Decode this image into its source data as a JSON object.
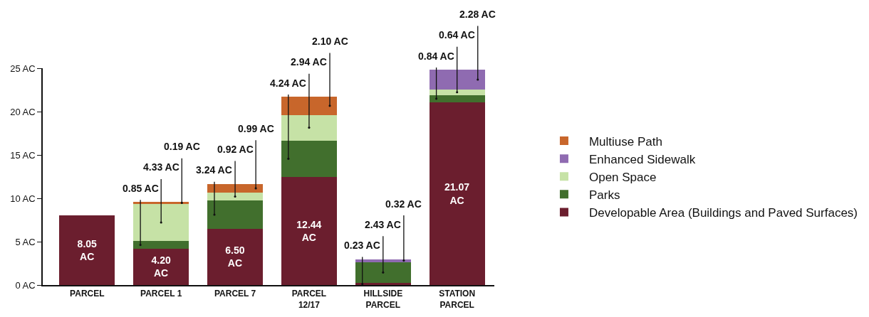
{
  "chart_data": {
    "type": "bar",
    "stacked": true,
    "categories": [
      "PARCEL",
      "PARCEL 1",
      "PARCEL 7",
      "PARCEL 12/17",
      "HILLSIDE PARCEL",
      "STATION PARCEL"
    ],
    "series": [
      {
        "name": "Developable Area (Buildings and Paved Surfaces)",
        "color": "#6b1e2e",
        "values": [
          8.05,
          4.2,
          6.5,
          12.44,
          0.23,
          21.07
        ],
        "value_labels": [
          "8.05 AC",
          "4.20 AC",
          "6.50 AC",
          "12.44 AC",
          "0.23 AC",
          "21.07 AC"
        ]
      },
      {
        "name": "Parks",
        "color": "#416f2d",
        "values": [
          null,
          0.85,
          3.24,
          4.24,
          2.43,
          0.84
        ],
        "value_labels": [
          null,
          "0.85 AC",
          "3.24 AC",
          "4.24 AC",
          "2.43 AC",
          "0.84 AC"
        ]
      },
      {
        "name": "Open Space",
        "color": "#c6e2a6",
        "values": [
          null,
          4.33,
          0.92,
          2.94,
          null,
          0.64
        ],
        "value_labels": [
          null,
          "4.33 AC",
          "0.92 AC",
          "2.94 AC",
          null,
          "0.64 AC"
        ]
      },
      {
        "name": "Enhanced Sidewalk",
        "color": "#8f6bb1",
        "values": [
          null,
          null,
          null,
          null,
          0.32,
          2.28
        ],
        "value_labels": [
          null,
          null,
          null,
          null,
          "0.32 AC",
          "2.28 AC"
        ]
      },
      {
        "name": "Multiuse Path",
        "color": "#c8662b",
        "values": [
          null,
          0.19,
          0.99,
          2.1,
          null,
          null
        ],
        "value_labels": [
          null,
          "0.19 AC",
          "0.99 AC",
          "2.10 AC",
          null,
          null
        ]
      }
    ],
    "ylim": [
      0,
      25
    ],
    "yticks": [
      {
        "value": 0,
        "label": "0 AC"
      },
      {
        "value": 5,
        "label": "5 AC"
      },
      {
        "value": 10,
        "label": "10 AC"
      },
      {
        "value": 15,
        "label": "15 AC"
      },
      {
        "value": 20,
        "label": "20 AC"
      },
      {
        "value": 25,
        "label": "25 AC"
      }
    ],
    "grid": false,
    "legend": "right"
  }
}
